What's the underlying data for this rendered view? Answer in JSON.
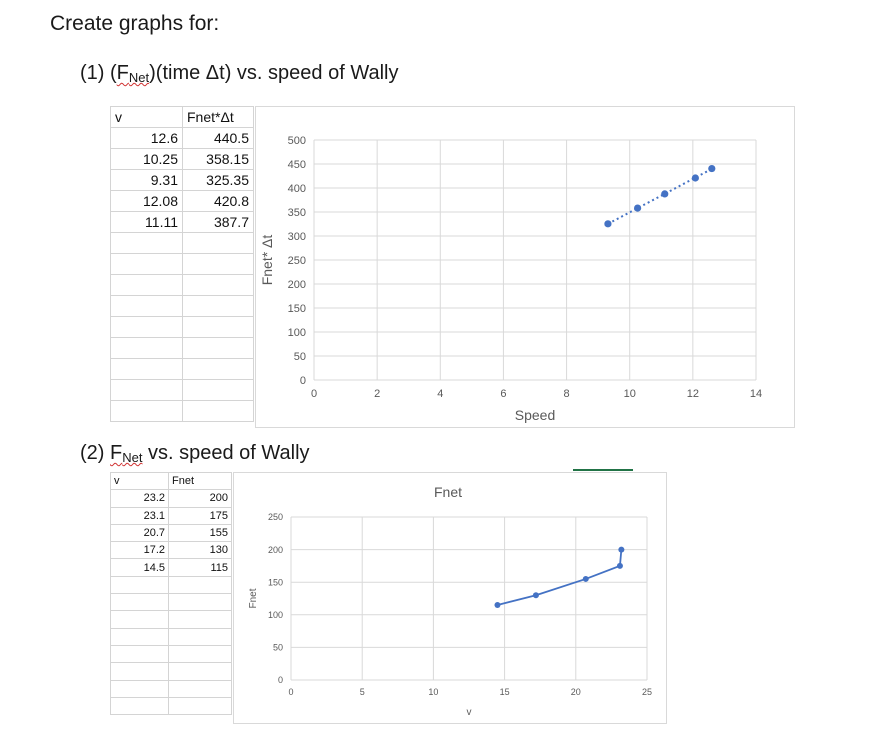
{
  "heading": "Create graphs for:",
  "section1": {
    "number": "(1) (",
    "f": "F",
    "sub": "Net",
    "rest": ")(time Δt) vs. speed of Wally"
  },
  "section2": {
    "number": "(2) ",
    "f": "F",
    "sub": "Net",
    "rest": " vs. speed of Wally"
  },
  "table1": {
    "col_v": "v",
    "col_f": "Fnet*Δt",
    "rows": [
      [
        "12.6",
        "440.5"
      ],
      [
        "10.25",
        "358.15"
      ],
      [
        "9.31",
        "325.35"
      ],
      [
        "12.08",
        "420.8"
      ],
      [
        "11.11",
        "387.7"
      ]
    ]
  },
  "table2": {
    "col_v": "v",
    "col_f": "Fnet",
    "rows": [
      [
        "23.2",
        "200"
      ],
      [
        "23.1",
        "175"
      ],
      [
        "20.7",
        "155"
      ],
      [
        "17.2",
        "130"
      ],
      [
        "14.5",
        "115"
      ]
    ]
  },
  "chart_data": [
    {
      "type": "scatter",
      "title": "",
      "xlabel": "Speed",
      "ylabel": "Fnet* Δt",
      "xlim": [
        0,
        14
      ],
      "ylim": [
        0,
        500
      ],
      "xticks": [
        0,
        2,
        4,
        6,
        8,
        10,
        12,
        14
      ],
      "yticks": [
        0,
        50,
        100,
        150,
        200,
        250,
        300,
        350,
        400,
        450,
        500
      ],
      "grid": true,
      "trendline": "dotted linear",
      "color": "#4472c4",
      "x": [
        12.6,
        10.25,
        9.31,
        12.08,
        11.11
      ],
      "y": [
        440.5,
        358.15,
        325.35,
        420.8,
        387.7
      ]
    },
    {
      "type": "line",
      "title": "Fnet",
      "xlabel": "v",
      "ylabel": "Fnet",
      "xlim": [
        0,
        25
      ],
      "ylim": [
        0,
        250
      ],
      "xticks": [
        0,
        5,
        10,
        15,
        20,
        25
      ],
      "yticks": [
        0,
        50,
        100,
        150,
        200,
        250
      ],
      "grid": true,
      "color": "#4472c4",
      "x": [
        23.2,
        23.1,
        20.7,
        17.2,
        14.5
      ],
      "y": [
        200,
        175,
        155,
        130,
        115
      ]
    }
  ]
}
